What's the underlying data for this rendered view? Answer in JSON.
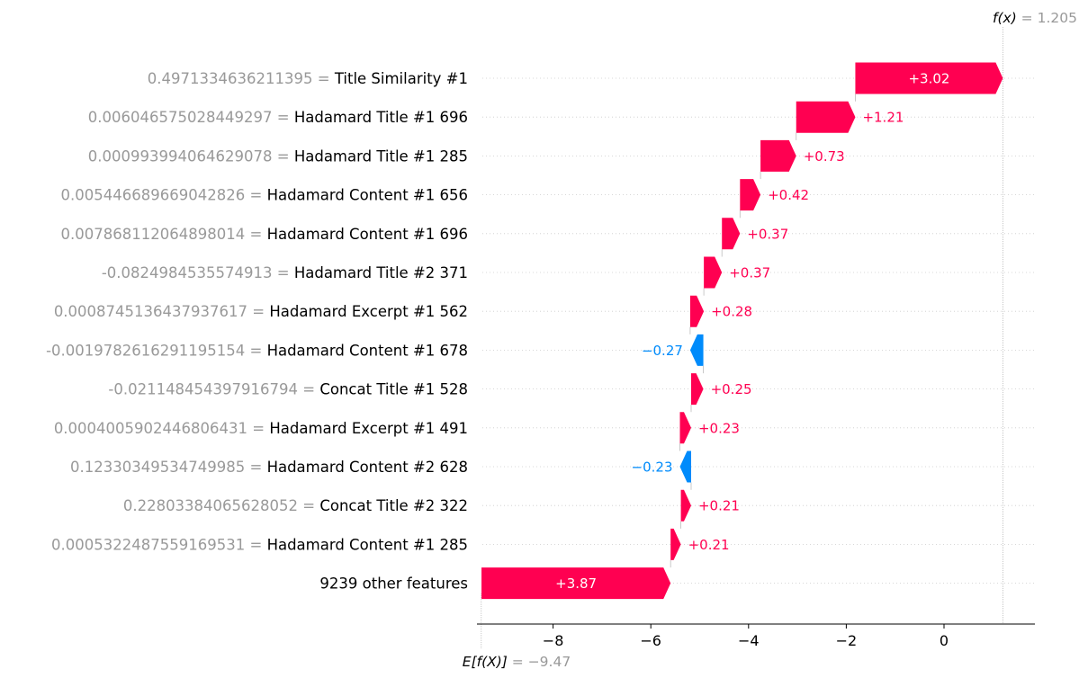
{
  "chart_data": {
    "type": "waterfall",
    "base_value": {
      "label": "E[f(X)]",
      "value_text": "= −9.47",
      "value": -9.47
    },
    "output_value": {
      "label": "f(x)",
      "value_text": "= 1.205",
      "value": 1.205
    },
    "x_ticks": [
      {
        "value": -8,
        "label": "−8"
      },
      {
        "value": -6,
        "label": "−6"
      },
      {
        "value": -4,
        "label": "−4"
      },
      {
        "value": -2,
        "label": "−2"
      },
      {
        "value": 0,
        "label": "0"
      }
    ],
    "xlim": [
      -9.6,
      1.85
    ],
    "colors": {
      "positive": "#ff0051",
      "negative": "#008bfb",
      "feature_value": "#999999",
      "feature_name": "#000000"
    },
    "features": [
      {
        "value_label": "0.4971334636211395 =",
        "name": "Title Similarity #1",
        "shap": 3.02,
        "shap_label": "+3.02",
        "start": -1.815,
        "end": 1.205
      },
      {
        "value_label": "0.006046575028449297 =",
        "name": "Hadamard Title #1 696",
        "shap": 1.21,
        "shap_label": "+1.21",
        "start": -3.025,
        "end": -1.815
      },
      {
        "value_label": "0.000993994064629078 =",
        "name": "Hadamard Title #1 285",
        "shap": 0.73,
        "shap_label": "+0.73",
        "start": -3.755,
        "end": -3.025
      },
      {
        "value_label": "0.005446689669042826 =",
        "name": "Hadamard Content #1 656",
        "shap": 0.42,
        "shap_label": "+0.42",
        "start": -4.175,
        "end": -3.755
      },
      {
        "value_label": "0.007868112064898014 =",
        "name": "Hadamard Content #1 696",
        "shap": 0.37,
        "shap_label": "+0.37",
        "start": -4.545,
        "end": -4.175
      },
      {
        "value_label": "-0.0824984535574913 =",
        "name": "Hadamard Title #2 371",
        "shap": 0.37,
        "shap_label": "+0.37",
        "start": -4.915,
        "end": -4.545
      },
      {
        "value_label": "0.0008745136437937617 =",
        "name": "Hadamard Excerpt #1 562",
        "shap": 0.28,
        "shap_label": "+0.28",
        "start": -5.195,
        "end": -4.915
      },
      {
        "value_label": "-0.0019782616291195154 =",
        "name": "Hadamard Content #1 678",
        "shap": -0.27,
        "shap_label": "−0.27",
        "start": -4.925,
        "end": -5.195
      },
      {
        "value_label": "-0.021148454397916794 =",
        "name": "Concat Title #1 528",
        "shap": 0.25,
        "shap_label": "+0.25",
        "start": -5.175,
        "end": -4.925
      },
      {
        "value_label": "0.0004005902446806431 =",
        "name": "Hadamard Excerpt #1 491",
        "shap": 0.23,
        "shap_label": "+0.23",
        "start": -5.405,
        "end": -5.175
      },
      {
        "value_label": "0.12330349534749985 =",
        "name": "Hadamard Content #2 628",
        "shap": -0.23,
        "shap_label": "−0.23",
        "start": -5.175,
        "end": -5.405
      },
      {
        "value_label": "0.22803384065628052 =",
        "name": "Concat Title #2 322",
        "shap": 0.21,
        "shap_label": "+0.21",
        "start": -5.385,
        "end": -5.175
      },
      {
        "value_label": "0.0005322487559169531 =",
        "name": "Hadamard Content #1 285",
        "shap": 0.21,
        "shap_label": "+0.21",
        "start": -5.595,
        "end": -5.385
      },
      {
        "value_label": "",
        "name": "9239 other features",
        "shap": 3.87,
        "shap_label": "+3.87",
        "start": -9.465,
        "end": -5.595
      }
    ]
  }
}
